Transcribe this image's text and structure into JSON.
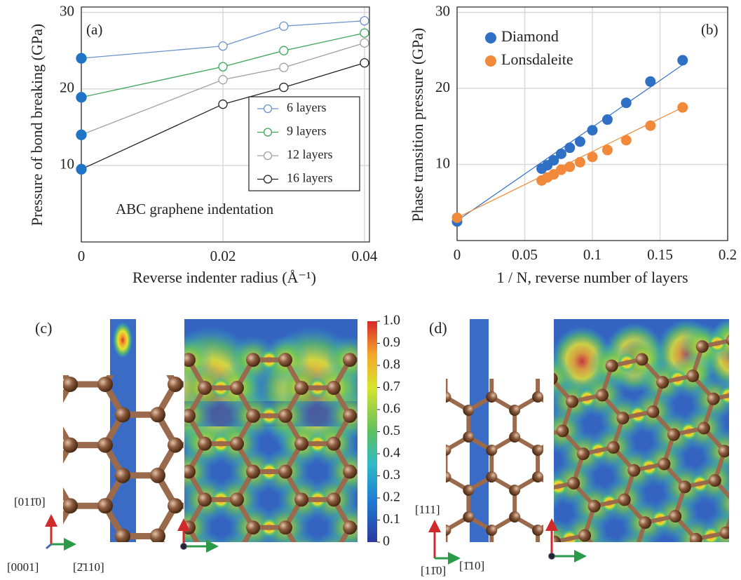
{
  "chart_data": [
    {
      "type": "line",
      "x_label": "Reverse indenter radius (Å⁻¹)",
      "y_label": "Pressure of bond breaking (GPa)",
      "annotations": [
        {
          "text": "(a)"
        },
        {
          "text": "ABC graphene indentation"
        }
      ],
      "x": [
        0,
        0.02,
        0.0286,
        0.04
      ],
      "xlim": [
        0,
        0.0407
      ],
      "xticks": [
        0,
        0.02,
        0.04
      ],
      "ylim": [
        0,
        30.7
      ],
      "yticks": [
        10,
        20,
        30
      ],
      "grid": true,
      "legend": "lower right",
      "legend_frame": true,
      "first_marker_color": "#1f74c6",
      "series": [
        {
          "name": "6 layers",
          "color": "#6b93c9",
          "values": [
            24.0,
            25.6,
            28.2,
            28.9
          ]
        },
        {
          "name": "9 layers",
          "color": "#3aa55a",
          "values": [
            18.9,
            22.9,
            25.0,
            27.3
          ]
        },
        {
          "name": "12 layers",
          "color": "#a0a0a0",
          "values": [
            14.0,
            21.2,
            22.8,
            26.0
          ]
        },
        {
          "name": "16 layers",
          "color": "#222222",
          "values": [
            9.5,
            18.0,
            20.2,
            23.4
          ]
        }
      ]
    },
    {
      "type": "scatter",
      "x_label": "1 / N, reverse number of layers",
      "y_label": "Phase transition pressure (GPa)",
      "annotations": [
        {
          "text": "(b)"
        }
      ],
      "x": [
        0,
        0.0625,
        0.0667,
        0.0714,
        0.0769,
        0.0833,
        0.0909,
        0.1,
        0.1111,
        0.125,
        0.1429,
        0.1667
      ],
      "xlim": [
        0,
        0.2
      ],
      "xticks": [
        0,
        0.05,
        0.1,
        0.15,
        0.2
      ],
      "ylim": [
        0,
        30.7
      ],
      "yticks": [
        10,
        20,
        30
      ],
      "grid": true,
      "legend": "upper left",
      "legend_frame": false,
      "series": [
        {
          "name": "Diamond",
          "color": "#2f6fc4",
          "values": [
            2.5,
            9.45,
            9.9,
            10.55,
            11.4,
            12.2,
            13.0,
            14.5,
            15.9,
            18.1,
            20.9,
            23.7
          ],
          "fit_x": [
            0,
            0.1667
          ],
          "fit_values": [
            2.6,
            23.1
          ]
        },
        {
          "name": "Lonsdaleite",
          "color": "#f08a3a",
          "values": [
            3.0,
            7.9,
            8.3,
            8.7,
            9.3,
            9.7,
            10.3,
            11.0,
            11.9,
            13.2,
            15.1,
            17.5
          ],
          "fit_x": [
            0,
            0.1667
          ],
          "fit_values": [
            3.0,
            17.5
          ]
        }
      ]
    }
  ],
  "figure_panels": [
    {
      "label": "(c)",
      "directions": [
        "[011̄0]",
        "[0001]",
        "[2̄110]"
      ]
    },
    {
      "label": "(d)",
      "directions": [
        "[111]",
        "[11̄0]",
        "[1̄10]"
      ]
    }
  ],
  "colorbar": {
    "lim": [
      0,
      1
    ],
    "ticks": [
      0,
      0.1,
      0.2,
      0.3,
      0.4,
      0.5,
      0.6,
      0.7,
      0.8,
      0.9,
      {
        "value": 1,
        "label": "1.0"
      }
    ]
  }
}
